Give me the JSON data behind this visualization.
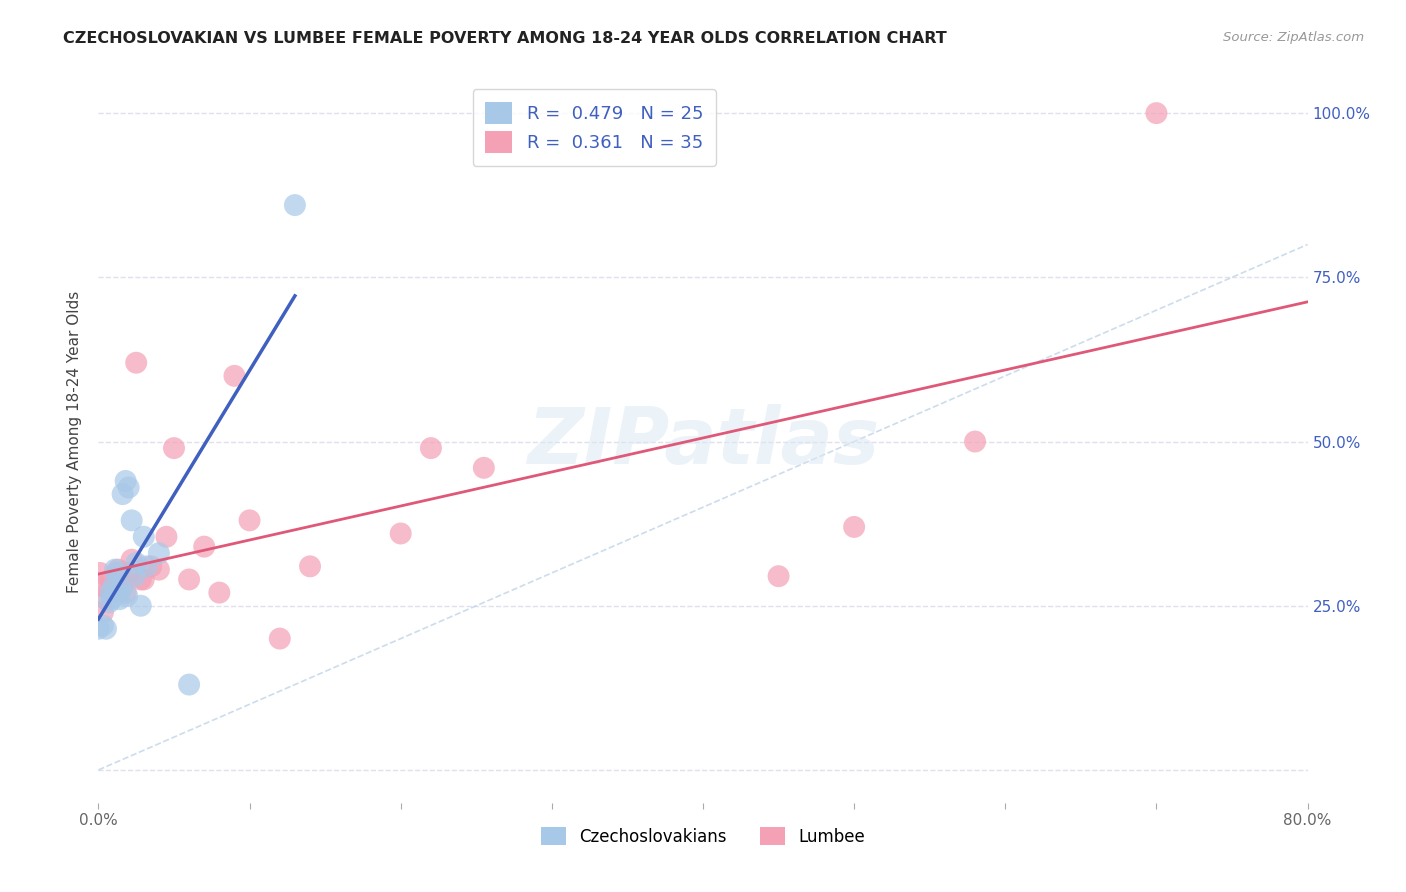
{
  "title": "CZECHOSLOVAKIAN VS LUMBEE FEMALE POVERTY AMONG 18-24 YEAR OLDS CORRELATION CHART",
  "source": "Source: ZipAtlas.com",
  "ylabel": "Female Poverty Among 18-24 Year Olds",
  "xlim": [
    0.0,
    0.8
  ],
  "ylim": [
    -0.05,
    1.05
  ],
  "xticks": [
    0.0,
    0.1,
    0.2,
    0.3,
    0.4,
    0.5,
    0.6,
    0.7,
    0.8
  ],
  "xticklabels": [
    "0.0%",
    "",
    "",
    "",
    "",
    "",
    "",
    "",
    "80.0%"
  ],
  "yticks": [
    0.0,
    0.25,
    0.5,
    0.75,
    1.0
  ],
  "right_yticklabels": [
    "",
    "25.0%",
    "50.0%",
    "75.0%",
    "100.0%"
  ],
  "czech_R": 0.479,
  "czech_N": 25,
  "lumbee_R": 0.361,
  "lumbee_N": 35,
  "czech_color": "#a8c8e8",
  "lumbee_color": "#f4a0b5",
  "czech_line_color": "#4060c0",
  "lumbee_line_color": "#e05878",
  "diag_line_color": "#c0d4e8",
  "watermark_text": "ZIPatlas",
  "czech_x": [
    0.0,
    0.003,
    0.005,
    0.007,
    0.008,
    0.009,
    0.01,
    0.011,
    0.012,
    0.013,
    0.014,
    0.015,
    0.016,
    0.018,
    0.019,
    0.02,
    0.022,
    0.024,
    0.025,
    0.028,
    0.03,
    0.032,
    0.04,
    0.06,
    0.13
  ],
  "czech_y": [
    0.215,
    0.22,
    0.215,
    0.255,
    0.27,
    0.26,
    0.28,
    0.305,
    0.3,
    0.27,
    0.26,
    0.275,
    0.42,
    0.44,
    0.265,
    0.43,
    0.38,
    0.295,
    0.315,
    0.25,
    0.355,
    0.31,
    0.33,
    0.13,
    0.86
  ],
  "lumbee_x": [
    0.0,
    0.001,
    0.003,
    0.005,
    0.007,
    0.008,
    0.01,
    0.012,
    0.013,
    0.015,
    0.016,
    0.018,
    0.02,
    0.022,
    0.025,
    0.028,
    0.03,
    0.035,
    0.04,
    0.045,
    0.05,
    0.06,
    0.07,
    0.08,
    0.09,
    0.1,
    0.12,
    0.14,
    0.2,
    0.22,
    0.255,
    0.45,
    0.5,
    0.58,
    0.7
  ],
  "lumbee_y": [
    0.28,
    0.3,
    0.24,
    0.26,
    0.275,
    0.29,
    0.27,
    0.285,
    0.305,
    0.295,
    0.28,
    0.27,
    0.3,
    0.32,
    0.62,
    0.29,
    0.29,
    0.31,
    0.305,
    0.355,
    0.49,
    0.29,
    0.34,
    0.27,
    0.6,
    0.38,
    0.2,
    0.31,
    0.36,
    0.49,
    0.46,
    0.295,
    0.37,
    0.5,
    1.0
  ],
  "background_color": "#ffffff",
  "grid_color": "#e0e0ee"
}
